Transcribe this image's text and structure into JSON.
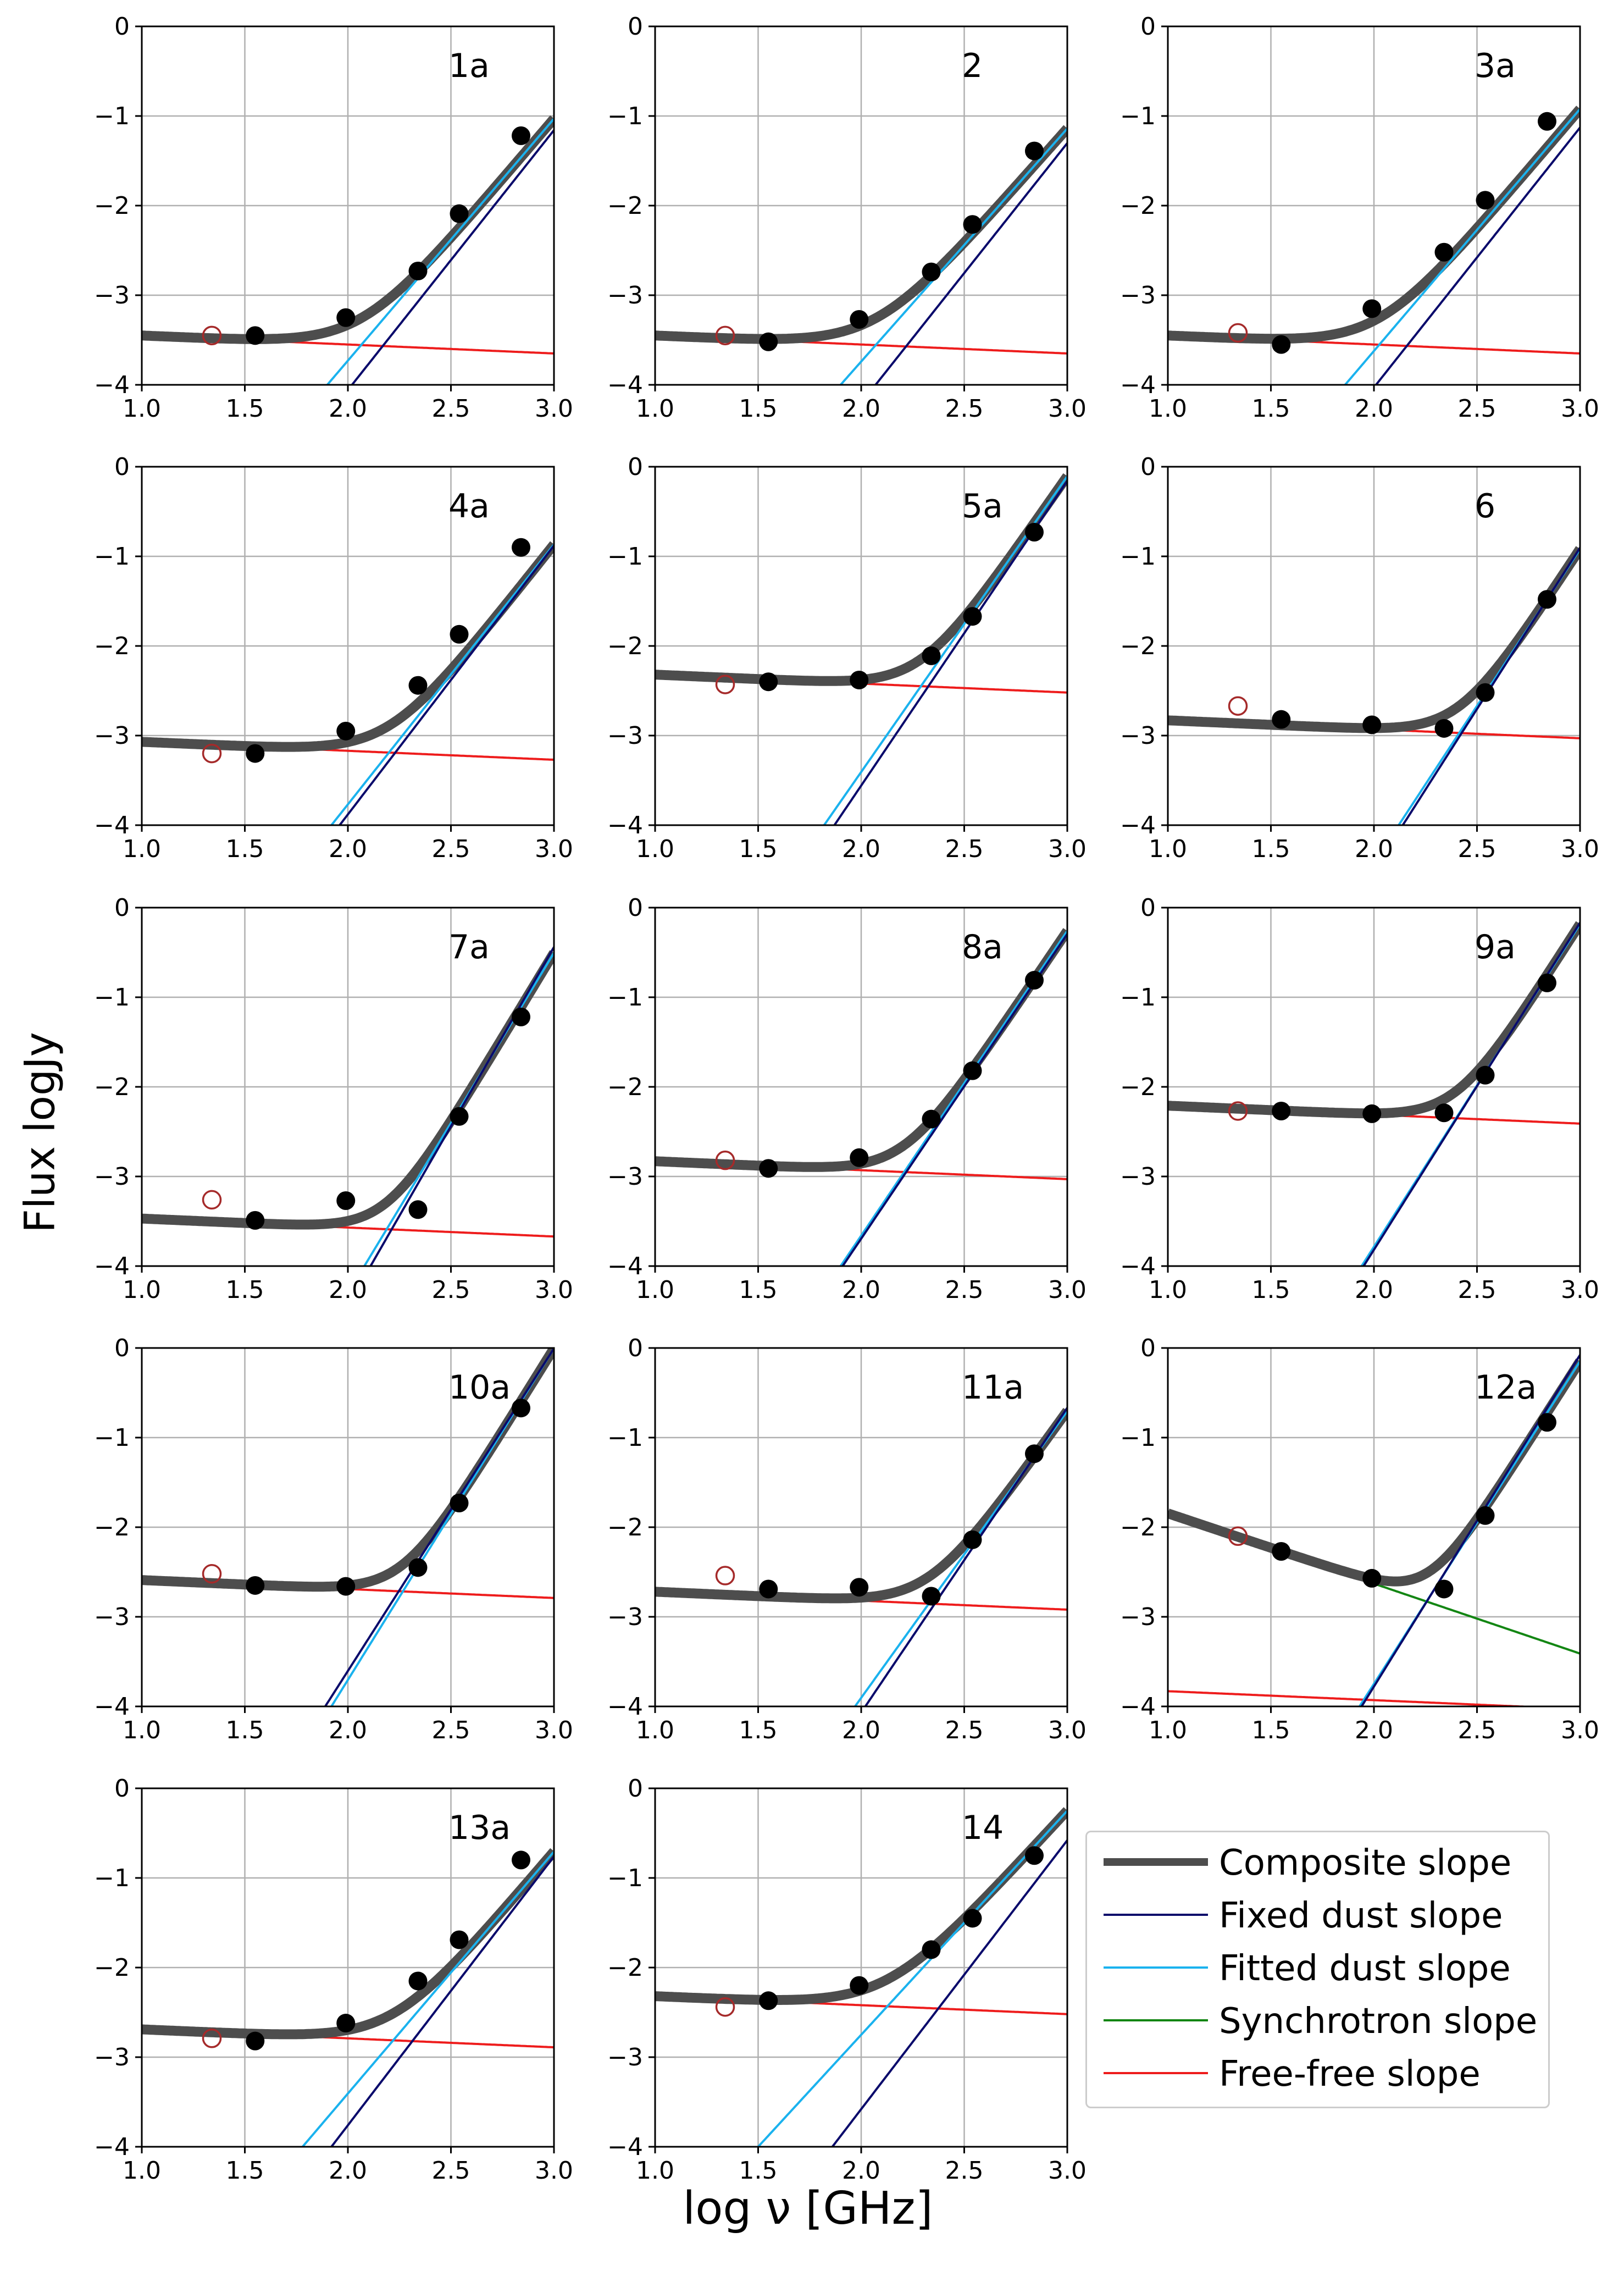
{
  "figure": {
    "xlabel": "log ν [GHz]",
    "ylabel": "Flux logJy"
  },
  "legend": {
    "items": [
      {
        "label": "Composite slope",
        "color": "#4d4d4d",
        "width": "thick"
      },
      {
        "label": "Fixed dust slope",
        "color": "#0a0a6b",
        "width": "thin"
      },
      {
        "label": "Fitted dust slope",
        "color": "#1ab2ee",
        "width": "thin"
      },
      {
        "label": "Synchrotron slope",
        "color": "#138613",
        "width": "thin"
      },
      {
        "label": "Free-free slope",
        "color": "#ee1c1c",
        "width": "thin"
      }
    ]
  },
  "chart_data": [
    {
      "type": "line",
      "title": "1a",
      "xlim": [
        1.0,
        3.0
      ],
      "ylim": [
        -4,
        0
      ],
      "xticks": [
        "1.0",
        "1.5",
        "2.0",
        "2.5",
        "3.0"
      ],
      "yticks": [
        "0",
        "−1",
        "−2",
        "−3",
        "−4"
      ],
      "grid": true,
      "open_point": {
        "x": 1.34,
        "y": -3.45
      },
      "points": [
        {
          "x": 1.55,
          "y": -3.45
        },
        {
          "x": 1.99,
          "y": -3.25
        },
        {
          "x": 2.34,
          "y": -2.73
        },
        {
          "x": 2.54,
          "y": -2.09
        },
        {
          "x": 2.84,
          "y": -1.22
        }
      ],
      "free_free": {
        "y_at_1": -3.45,
        "slope": -0.1
      },
      "fixed_dust": {
        "x0": 2.02,
        "slope": 2.9
      },
      "fitted_dust": {
        "x0": 1.9,
        "slope": 2.7
      }
    },
    {
      "type": "line",
      "title": "2",
      "xlim": [
        1.0,
        3.0
      ],
      "ylim": [
        -4,
        0
      ],
      "xticks": [
        "1.0",
        "1.5",
        "2.0",
        "2.5",
        "3.0"
      ],
      "yticks": [
        "0",
        "−1",
        "−2",
        "−3",
        "−4"
      ],
      "grid": true,
      "open_point": {
        "x": 1.34,
        "y": -3.45
      },
      "points": [
        {
          "x": 1.55,
          "y": -3.52
        },
        {
          "x": 1.99,
          "y": -3.27
        },
        {
          "x": 2.34,
          "y": -2.74
        },
        {
          "x": 2.54,
          "y": -2.21
        },
        {
          "x": 2.84,
          "y": -1.39
        }
      ],
      "free_free": {
        "y_at_1": -3.45,
        "slope": -0.1
      },
      "fixed_dust": {
        "x0": 2.07,
        "slope": 2.9
      },
      "fitted_dust": {
        "x0": 1.9,
        "slope": 2.6
      }
    },
    {
      "type": "line",
      "title": "3a",
      "xlim": [
        1.0,
        3.0
      ],
      "ylim": [
        -4,
        0
      ],
      "xticks": [
        "1.0",
        "1.5",
        "2.0",
        "2.5",
        "3.0"
      ],
      "yticks": [
        "0",
        "−1",
        "−2",
        "−3",
        "−4"
      ],
      "grid": true,
      "open_point": {
        "x": 1.34,
        "y": -3.42
      },
      "points": [
        {
          "x": 1.55,
          "y": -3.55
        },
        {
          "x": 1.99,
          "y": -3.15
        },
        {
          "x": 2.34,
          "y": -2.52
        },
        {
          "x": 2.54,
          "y": -1.94
        },
        {
          "x": 2.84,
          "y": -1.06
        }
      ],
      "free_free": {
        "y_at_1": -3.45,
        "slope": -0.1
      },
      "fixed_dust": {
        "x0": 2.01,
        "slope": 2.9
      },
      "fitted_dust": {
        "x0": 1.86,
        "slope": 2.7
      }
    },
    {
      "type": "line",
      "title": "4a",
      "xlim": [
        1.0,
        3.0
      ],
      "ylim": [
        -4,
        0
      ],
      "xticks": [
        "1.0",
        "1.5",
        "2.0",
        "2.5",
        "3.0"
      ],
      "yticks": [
        "0",
        "−1",
        "−2",
        "−3",
        "−4"
      ],
      "grid": true,
      "open_point": {
        "x": 1.34,
        "y": -3.2
      },
      "points": [
        {
          "x": 1.55,
          "y": -3.2
        },
        {
          "x": 1.99,
          "y": -2.95
        },
        {
          "x": 2.34,
          "y": -2.44
        },
        {
          "x": 2.54,
          "y": -1.87
        },
        {
          "x": 2.84,
          "y": -0.9
        }
      ],
      "free_free": {
        "y_at_1": -3.07,
        "slope": -0.1
      },
      "fixed_dust": {
        "x0": 1.96,
        "slope": 3.0
      },
      "fitted_dust": {
        "x0": 1.92,
        "slope": 2.9
      }
    },
    {
      "type": "line",
      "title": "5a",
      "xlim": [
        1.0,
        3.0
      ],
      "ylim": [
        -4,
        0
      ],
      "xticks": [
        "1.0",
        "1.5",
        "2.0",
        "2.5",
        "3.0"
      ],
      "yticks": [
        "0",
        "−1",
        "−2",
        "−3",
        "−4"
      ],
      "grid": true,
      "open_point": {
        "x": 1.34,
        "y": -2.43
      },
      "points": [
        {
          "x": 1.55,
          "y": -2.4
        },
        {
          "x": 1.99,
          "y": -2.38
        },
        {
          "x": 2.34,
          "y": -2.11
        },
        {
          "x": 2.54,
          "y": -1.67
        },
        {
          "x": 2.84,
          "y": -0.73
        }
      ],
      "free_free": {
        "y_at_1": -2.32,
        "slope": -0.1
      },
      "fixed_dust": {
        "x0": 1.87,
        "slope": 3.4
      },
      "fitted_dust": {
        "x0": 1.82,
        "slope": 3.3
      }
    },
    {
      "type": "line",
      "title": "6",
      "xlim": [
        1.0,
        3.0
      ],
      "ylim": [
        -4,
        0
      ],
      "xticks": [
        "1.0",
        "1.5",
        "2.0",
        "2.5",
        "3.0"
      ],
      "yticks": [
        "0",
        "−1",
        "−2",
        "−3",
        "−4"
      ],
      "grid": true,
      "open_point": {
        "x": 1.34,
        "y": -2.67
      },
      "points": [
        {
          "x": 1.55,
          "y": -2.82
        },
        {
          "x": 1.99,
          "y": -2.88
        },
        {
          "x": 2.34,
          "y": -2.92
        },
        {
          "x": 2.54,
          "y": -2.52
        },
        {
          "x": 2.84,
          "y": -1.48
        }
      ],
      "free_free": {
        "y_at_1": -2.83,
        "slope": -0.1
      },
      "fixed_dust": {
        "x0": 2.14,
        "slope": 3.6
      },
      "fitted_dust": {
        "x0": 2.12,
        "slope": 3.5
      }
    },
    {
      "type": "line",
      "title": "7a",
      "xlim": [
        1.0,
        3.0
      ],
      "ylim": [
        -4,
        0
      ],
      "xticks": [
        "1.0",
        "1.5",
        "2.0",
        "2.5",
        "3.0"
      ],
      "yticks": [
        "0",
        "−1",
        "−2",
        "−3",
        "−4"
      ],
      "grid": true,
      "open_point": {
        "x": 1.34,
        "y": -3.26
      },
      "points": [
        {
          "x": 1.55,
          "y": -3.49
        },
        {
          "x": 1.99,
          "y": -3.27
        },
        {
          "x": 2.34,
          "y": -3.37
        },
        {
          "x": 2.54,
          "y": -2.33
        },
        {
          "x": 2.84,
          "y": -1.22
        }
      ],
      "free_free": {
        "y_at_1": -3.47,
        "slope": -0.1
      },
      "fixed_dust": {
        "x0": 2.11,
        "slope": 4.0
      },
      "fitted_dust": {
        "x0": 2.08,
        "slope": 3.8
      }
    },
    {
      "type": "line",
      "title": "8a",
      "xlim": [
        1.0,
        3.0
      ],
      "ylim": [
        -4,
        0
      ],
      "xticks": [
        "1.0",
        "1.5",
        "2.0",
        "2.5",
        "3.0"
      ],
      "yticks": [
        "0",
        "−1",
        "−2",
        "−3",
        "−4"
      ],
      "grid": true,
      "open_point": {
        "x": 1.34,
        "y": -2.82
      },
      "points": [
        {
          "x": 1.55,
          "y": -2.91
        },
        {
          "x": 1.99,
          "y": -2.79
        },
        {
          "x": 2.34,
          "y": -2.36
        },
        {
          "x": 2.54,
          "y": -1.82
        },
        {
          "x": 2.84,
          "y": -0.81
        }
      ],
      "free_free": {
        "y_at_1": -2.83,
        "slope": -0.1
      },
      "fixed_dust": {
        "x0": 1.91,
        "slope": 3.4
      },
      "fitted_dust": {
        "x0": 1.9,
        "slope": 3.4
      }
    },
    {
      "type": "line",
      "title": "9a",
      "xlim": [
        1.0,
        3.0
      ],
      "ylim": [
        -4,
        0
      ],
      "xticks": [
        "1.0",
        "1.5",
        "2.0",
        "2.5",
        "3.0"
      ],
      "yticks": [
        "0",
        "−1",
        "−2",
        "−3",
        "−4"
      ],
      "grid": true,
      "open_point": {
        "x": 1.34,
        "y": -2.27
      },
      "points": [
        {
          "x": 1.55,
          "y": -2.27
        },
        {
          "x": 1.99,
          "y": -2.3
        },
        {
          "x": 2.34,
          "y": -2.29
        },
        {
          "x": 2.54,
          "y": -1.87
        },
        {
          "x": 2.84,
          "y": -0.84
        }
      ],
      "free_free": {
        "y_at_1": -2.21,
        "slope": -0.1
      },
      "fixed_dust": {
        "x0": 1.95,
        "slope": 3.65
      },
      "fitted_dust": {
        "x0": 1.94,
        "slope": 3.6
      }
    },
    {
      "type": "line",
      "title": "10a",
      "xlim": [
        1.0,
        3.0
      ],
      "ylim": [
        -4,
        0
      ],
      "xticks": [
        "1.0",
        "1.5",
        "2.0",
        "2.5",
        "3.0"
      ],
      "yticks": [
        "0",
        "−1",
        "−2",
        "−3",
        "−4"
      ],
      "grid": true,
      "open_point": {
        "x": 1.34,
        "y": -2.52
      },
      "points": [
        {
          "x": 1.55,
          "y": -2.65
        },
        {
          "x": 1.99,
          "y": -2.66
        },
        {
          "x": 2.34,
          "y": -2.45
        },
        {
          "x": 2.54,
          "y": -1.73
        },
        {
          "x": 2.84,
          "y": -0.67
        }
      ],
      "free_free": {
        "y_at_1": -2.59,
        "slope": -0.1
      },
      "fixed_dust": {
        "x0": 1.89,
        "slope": 3.6
      },
      "fitted_dust": {
        "x0": 1.92,
        "slope": 3.7
      }
    },
    {
      "type": "line",
      "title": "11a",
      "xlim": [
        1.0,
        3.0
      ],
      "ylim": [
        -4,
        0
      ],
      "xticks": [
        "1.0",
        "1.5",
        "2.0",
        "2.5",
        "3.0"
      ],
      "yticks": [
        "0",
        "−1",
        "−2",
        "−3",
        "−4"
      ],
      "grid": true,
      "open_point": {
        "x": 1.34,
        "y": -2.54
      },
      "points": [
        {
          "x": 1.55,
          "y": -2.69
        },
        {
          "x": 1.99,
          "y": -2.67
        },
        {
          "x": 2.34,
          "y": -2.77
        },
        {
          "x": 2.54,
          "y": -2.14
        },
        {
          "x": 2.84,
          "y": -1.18
        }
      ],
      "free_free": {
        "y_at_1": -2.72,
        "slope": -0.1
      },
      "fixed_dust": {
        "x0": 2.02,
        "slope": 3.4
      },
      "fitted_dust": {
        "x0": 1.97,
        "slope": 3.2
      }
    },
    {
      "type": "line",
      "title": "12a",
      "xlim": [
        1.0,
        3.0
      ],
      "ylim": [
        -4,
        0
      ],
      "xticks": [
        "1.0",
        "1.5",
        "2.0",
        "2.5",
        "3.0"
      ],
      "yticks": [
        "0",
        "−1",
        "−2",
        "−3",
        "−4"
      ],
      "grid": true,
      "open_point": {
        "x": 1.34,
        "y": -2.1
      },
      "points": [
        {
          "x": 1.55,
          "y": -2.27
        },
        {
          "x": 1.99,
          "y": -2.57
        },
        {
          "x": 2.34,
          "y": -2.69
        },
        {
          "x": 2.54,
          "y": -1.87
        },
        {
          "x": 2.84,
          "y": -0.83
        }
      ],
      "free_free": {
        "y_at_1": -3.83,
        "slope": -0.1
      },
      "synchrotron": {
        "y_at_1": -1.85,
        "slope": -0.78
      },
      "fixed_dust": {
        "x0": 1.94,
        "slope": 3.7
      },
      "fitted_dust": {
        "x0": 1.93,
        "slope": 3.6
      }
    },
    {
      "type": "line",
      "title": "13a",
      "xlim": [
        1.0,
        3.0
      ],
      "ylim": [
        -4,
        0
      ],
      "xticks": [
        "1.0",
        "1.5",
        "2.0",
        "2.5",
        "3.0"
      ],
      "yticks": [
        "0",
        "−1",
        "−2",
        "−3",
        "−4"
      ],
      "grid": true,
      "open_point": {
        "x": 1.34,
        "y": -2.79
      },
      "points": [
        {
          "x": 1.55,
          "y": -2.82
        },
        {
          "x": 1.99,
          "y": -2.62
        },
        {
          "x": 2.34,
          "y": -2.15
        },
        {
          "x": 2.54,
          "y": -1.69
        },
        {
          "x": 2.84,
          "y": -0.8
        }
      ],
      "free_free": {
        "y_at_1": -2.69,
        "slope": -0.1
      },
      "fixed_dust": {
        "x0": 1.92,
        "slope": 3.0
      },
      "fitted_dust": {
        "x0": 1.78,
        "slope": 2.7
      }
    },
    {
      "type": "line",
      "title": "14",
      "xlim": [
        1.0,
        3.0
      ],
      "ylim": [
        -4,
        0
      ],
      "xticks": [
        "1.0",
        "1.5",
        "2.0",
        "2.5",
        "3.0"
      ],
      "yticks": [
        "0",
        "−1",
        "−2",
        "−3",
        "−4"
      ],
      "grid": true,
      "open_point": {
        "x": 1.34,
        "y": -2.44
      },
      "points": [
        {
          "x": 1.55,
          "y": -2.37
        },
        {
          "x": 1.99,
          "y": -2.2
        },
        {
          "x": 2.34,
          "y": -1.8
        },
        {
          "x": 2.54,
          "y": -1.45
        },
        {
          "x": 2.84,
          "y": -0.75
        }
      ],
      "free_free": {
        "y_at_1": -2.32,
        "slope": -0.1
      },
      "fixed_dust": {
        "x0": 1.86,
        "slope": 3.0
      },
      "fitted_dust": {
        "x0": 1.5,
        "slope": 2.5
      }
    }
  ]
}
